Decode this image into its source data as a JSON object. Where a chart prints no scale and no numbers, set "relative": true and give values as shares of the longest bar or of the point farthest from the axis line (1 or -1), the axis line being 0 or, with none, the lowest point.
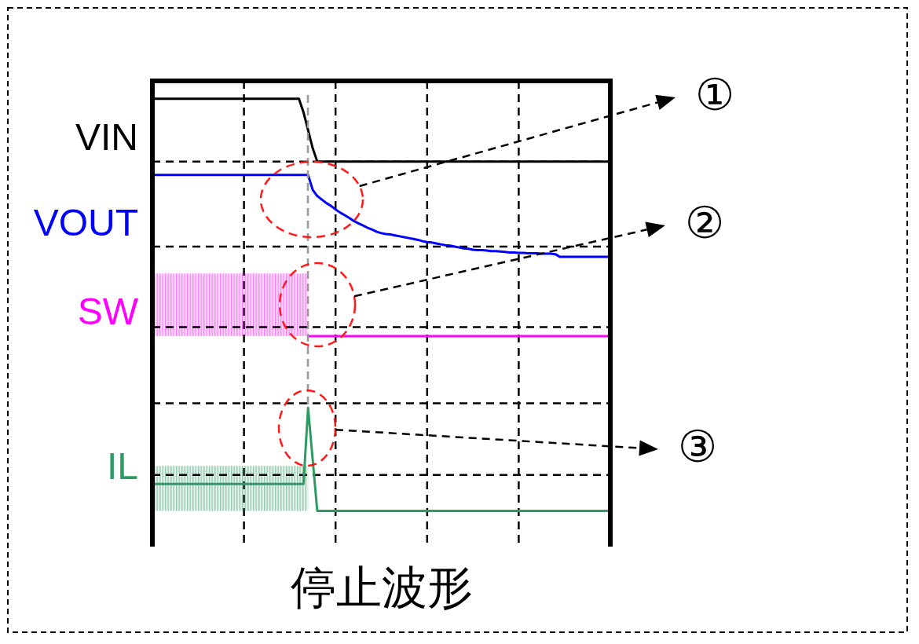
{
  "chart_data": {
    "type": "line",
    "title": "停止波形",
    "relative": true,
    "tick_labels": false,
    "grid": "x",
    "marker": "none",
    "line_style": "solid",
    "categories": [
      null,
      null,
      null,
      null,
      null,
      null,
      null,
      null,
      null,
      null,
      null,
      null,
      null,
      null,
      null,
      null,
      null,
      null,
      null,
      null,
      null,
      null,
      null,
      null,
      null,
      null,
      null,
      null,
      null,
      null,
      null,
      null,
      null,
      null,
      null,
      null,
      null,
      null,
      null,
      null,
      null,
      null,
      null,
      null,
      null,
      null,
      null,
      null,
      null,
      null,
      null,
      null,
      null,
      null,
      null,
      null,
      null,
      null,
      null,
      null,
      null,
      null,
      null,
      null,
      null,
      null,
      null,
      null,
      null,
      null,
      null,
      null,
      null,
      null,
      null,
      null,
      null,
      null,
      null,
      null,
      null,
      null,
      null,
      null,
      null,
      null,
      null,
      null,
      null,
      null,
      null,
      null,
      null,
      null,
      null,
      null,
      null,
      null,
      null,
      null,
      null
    ],
    "series": [
      {
        "name": "VIN",
        "color": "#000000",
        "values": [
          1,
          1,
          1,
          1,
          1,
          1,
          1,
          1,
          1,
          1,
          1,
          1,
          1,
          1,
          1,
          1,
          1,
          1,
          1,
          1,
          1,
          1,
          1,
          1,
          1,
          1,
          1,
          1,
          1,
          1,
          1,
          1,
          1,
          0.97,
          0.93,
          0.89,
          0.86,
          0.86,
          0.86,
          0.86,
          0.86,
          0.86,
          0.86,
          0.86,
          0.86,
          0.86,
          0.86,
          0.86,
          0.86,
          0.86,
          0.86,
          0.86,
          0.86,
          0.86,
          0.86,
          0.86,
          0.86,
          0.86,
          0.86,
          0.86,
          0.86,
          0.86,
          0.86,
          0.86,
          0.86,
          0.86,
          0.86,
          0.86,
          0.86,
          0.86,
          0.86,
          0.86,
          0.86,
          0.86,
          0.86,
          0.86,
          0.86,
          0.86,
          0.86,
          0.86,
          0.86,
          0.86,
          0.86,
          0.86,
          0.86,
          0.86,
          0.86,
          0.86,
          0.86,
          0.86,
          0.86,
          0.86,
          0.86,
          0.86,
          0.86,
          0.86,
          0.86,
          0.86,
          0.86,
          0.86,
          0.86
        ]
      },
      {
        "name": "VOUT",
        "color": "#0000ff",
        "values": [
          0.83,
          0.83,
          0.83,
          0.83,
          0.83,
          0.83,
          0.83,
          0.83,
          0.83,
          0.83,
          0.83,
          0.83,
          0.83,
          0.83,
          0.83,
          0.83,
          0.83,
          0.83,
          0.83,
          0.83,
          0.83,
          0.83,
          0.83,
          0.83,
          0.83,
          0.83,
          0.83,
          0.83,
          0.83,
          0.83,
          0.83,
          0.83,
          0.83,
          0.83,
          0.83,
          0.797,
          0.783,
          0.775,
          0.767,
          0.761,
          0.753,
          0.746,
          0.74,
          0.734,
          0.727,
          0.722,
          0.717,
          0.712,
          0.708,
          0.703,
          0.7,
          0.698,
          0.697,
          0.695,
          0.693,
          0.691,
          0.689,
          0.687,
          0.685,
          0.682,
          0.68,
          0.679,
          0.677,
          0.675,
          0.673,
          0.672,
          0.67,
          0.668,
          0.666,
          0.665,
          0.663,
          0.662,
          0.662,
          0.661,
          0.66,
          0.66,
          0.659,
          0.658,
          0.657,
          0.657,
          0.656,
          0.656,
          0.655,
          0.655,
          0.655,
          0.654,
          0.654,
          0.654,
          0.653,
          0.647,
          0.647,
          0.647,
          0.647,
          0.647,
          0.647,
          0.647,
          0.647,
          0.647,
          0.647,
          0.647,
          0.647
        ]
      },
      {
        "name": "SW",
        "color": "#ff00ff",
        "values": [
          null,
          null,
          null,
          null,
          null,
          null,
          null,
          null,
          null,
          null,
          null,
          null,
          null,
          null,
          null,
          null,
          null,
          null,
          null,
          null,
          null,
          null,
          null,
          null,
          null,
          null,
          null,
          null,
          null,
          null,
          null,
          null,
          null,
          null,
          0.47,
          0.47,
          0.47,
          0.47,
          0.47,
          0.47,
          0.47,
          0.47,
          0.47,
          0.47,
          0.47,
          0.47,
          0.47,
          0.47,
          0.47,
          0.47,
          0.47,
          0.47,
          0.47,
          0.47,
          0.47,
          0.47,
          0.47,
          0.47,
          0.47,
          0.47,
          0.47,
          0.47,
          0.47,
          0.47,
          0.47,
          0.47,
          0.47,
          0.47,
          0.47,
          0.47,
          0.47,
          0.47,
          0.47,
          0.47,
          0.47,
          0.47,
          0.47,
          0.47,
          0.47,
          0.47,
          0.47,
          0.47,
          0.47,
          0.47,
          0.47,
          0.47,
          0.47,
          0.47,
          0.47,
          0.47,
          0.47,
          0.47,
          0.47,
          0.47,
          0.47,
          0.47,
          0.47,
          0.47,
          0.47,
          0.47,
          0.47
        ],
        "lower": [
          0.47,
          0.47,
          0.47,
          0.47,
          0.47,
          0.47,
          0.47,
          0.47,
          0.47,
          0.47,
          0.47,
          0.47,
          0.47,
          0.47,
          0.47,
          0.47,
          0.47,
          0.47,
          0.47,
          0.47,
          0.47,
          0.47,
          0.47,
          0.47,
          0.47,
          0.47,
          0.47,
          0.47,
          0.47,
          0.47,
          0.47,
          0.47,
          0.47,
          0.47,
          0.47,
          null,
          null,
          null,
          null,
          null,
          null,
          null,
          null,
          null,
          null,
          null,
          null,
          null,
          null,
          null,
          null,
          null,
          null,
          null,
          null,
          null,
          null,
          null,
          null,
          null,
          null,
          null,
          null,
          null,
          null,
          null,
          null,
          null,
          null,
          null,
          null,
          null,
          null,
          null,
          null,
          null,
          null,
          null,
          null,
          null,
          null,
          null,
          null,
          null,
          null,
          null,
          null,
          null,
          null,
          null,
          null,
          null,
          null,
          null,
          null,
          null,
          null,
          null,
          null,
          null,
          null
        ],
        "upper": [
          0.61,
          0.61,
          0.61,
          0.61,
          0.61,
          0.61,
          0.61,
          0.61,
          0.61,
          0.61,
          0.61,
          0.61,
          0.61,
          0.61,
          0.61,
          0.61,
          0.61,
          0.61,
          0.61,
          0.61,
          0.61,
          0.61,
          0.61,
          0.61,
          0.61,
          0.61,
          0.61,
          0.61,
          0.61,
          0.61,
          0.61,
          0.61,
          0.61,
          0.61,
          0.61,
          null,
          null,
          null,
          null,
          null,
          null,
          null,
          null,
          null,
          null,
          null,
          null,
          null,
          null,
          null,
          null,
          null,
          null,
          null,
          null,
          null,
          null,
          null,
          null,
          null,
          null,
          null,
          null,
          null,
          null,
          null,
          null,
          null,
          null,
          null,
          null,
          null,
          null,
          null,
          null,
          null,
          null,
          null,
          null,
          null,
          null,
          null,
          null,
          null,
          null,
          null,
          null,
          null,
          null,
          null,
          null,
          null,
          null,
          null,
          null,
          null,
          null,
          null,
          null,
          null,
          null
        ]
      },
      {
        "name": "IL",
        "color": "#2e9a64",
        "values": [
          0.14,
          0.14,
          0.14,
          0.14,
          0.14,
          0.14,
          0.14,
          0.14,
          0.14,
          0.14,
          0.14,
          0.14,
          0.14,
          0.14,
          0.14,
          0.14,
          0.14,
          0.14,
          0.14,
          0.14,
          0.14,
          0.14,
          0.14,
          0.14,
          0.14,
          0.14,
          0.14,
          0.14,
          0.14,
          0.14,
          0.14,
          0.14,
          0.14,
          0.14,
          0.31,
          0.195,
          0.08,
          0.08,
          0.08,
          0.08,
          0.08,
          0.08,
          0.08,
          0.08,
          0.08,
          0.08,
          0.08,
          0.08,
          0.08,
          0.08,
          0.08,
          0.08,
          0.08,
          0.08,
          0.08,
          0.08,
          0.08,
          0.08,
          0.08,
          0.08,
          0.08,
          0.08,
          0.08,
          0.08,
          0.08,
          0.08,
          0.08,
          0.08,
          0.08,
          0.08,
          0.08,
          0.08,
          0.08,
          0.08,
          0.08,
          0.08,
          0.08,
          0.08,
          0.08,
          0.08,
          0.08,
          0.08,
          0.08,
          0.08,
          0.08,
          0.08,
          0.08,
          0.08,
          0.08,
          0.08,
          0.08,
          0.08,
          0.08,
          0.08,
          0.08,
          0.08,
          0.08,
          0.08,
          0.08,
          0.08,
          0.08
        ],
        "lower": [
          0.08,
          0.08,
          0.08,
          0.08,
          0.08,
          0.08,
          0.08,
          0.08,
          0.08,
          0.08,
          0.08,
          0.08,
          0.08,
          0.08,
          0.08,
          0.08,
          0.08,
          0.08,
          0.08,
          0.08,
          0.08,
          0.08,
          0.08,
          0.08,
          0.08,
          0.08,
          0.08,
          0.08,
          0.08,
          0.08,
          0.08,
          0.08,
          0.08,
          0.08,
          0.08,
          null,
          null,
          null,
          null,
          null,
          null,
          null,
          null,
          null,
          null,
          null,
          null,
          null,
          null,
          null,
          null,
          null,
          null,
          null,
          null,
          null,
          null,
          null,
          null,
          null,
          null,
          null,
          null,
          null,
          null,
          null,
          null,
          null,
          null,
          null,
          null,
          null,
          null,
          null,
          null,
          null,
          null,
          null,
          null,
          null,
          null,
          null,
          null,
          null,
          null,
          null,
          null,
          null,
          null,
          null,
          null,
          null,
          null,
          null,
          null,
          null,
          null,
          null,
          null,
          null,
          null
        ],
        "upper": [
          0.18,
          0.18,
          0.18,
          0.18,
          0.18,
          0.18,
          0.18,
          0.18,
          0.18,
          0.18,
          0.18,
          0.18,
          0.18,
          0.18,
          0.18,
          0.18,
          0.18,
          0.18,
          0.18,
          0.18,
          0.18,
          0.18,
          0.18,
          0.18,
          0.18,
          0.18,
          0.18,
          0.18,
          0.18,
          0.18,
          0.18,
          0.18,
          0.18,
          0.18,
          0.18,
          null,
          null,
          null,
          null,
          null,
          null,
          null,
          null,
          null,
          null,
          null,
          null,
          null,
          null,
          null,
          null,
          null,
          null,
          null,
          null,
          null,
          null,
          null,
          null,
          null,
          null,
          null,
          null,
          null,
          null,
          null,
          null,
          null,
          null,
          null,
          null,
          null,
          null,
          null,
          null,
          null,
          null,
          null,
          null,
          null,
          null,
          null,
          null,
          null,
          null,
          null,
          null,
          null,
          null,
          null,
          null,
          null,
          null,
          null,
          null,
          null,
          null,
          null,
          null,
          null,
          null
        ]
      }
    ],
    "ref_lines": [
      {
        "axis": "y",
        "value": 0.86,
        "color": "#000000",
        "line_style": "dashed"
      },
      {
        "axis": "y",
        "value": 0.67,
        "color": "#000000",
        "line_style": "dashed"
      },
      {
        "axis": "y",
        "value": 0.49,
        "color": "#000000",
        "line_style": "dashed"
      },
      {
        "axis": "y",
        "value": 0.32,
        "color": "#000000",
        "line_style": "dashed"
      },
      {
        "axis": "y",
        "value": 0.16,
        "color": "#000000",
        "line_style": "dashed"
      }
    ],
    "annotations": [
      "①",
      "②",
      "③"
    ]
  }
}
